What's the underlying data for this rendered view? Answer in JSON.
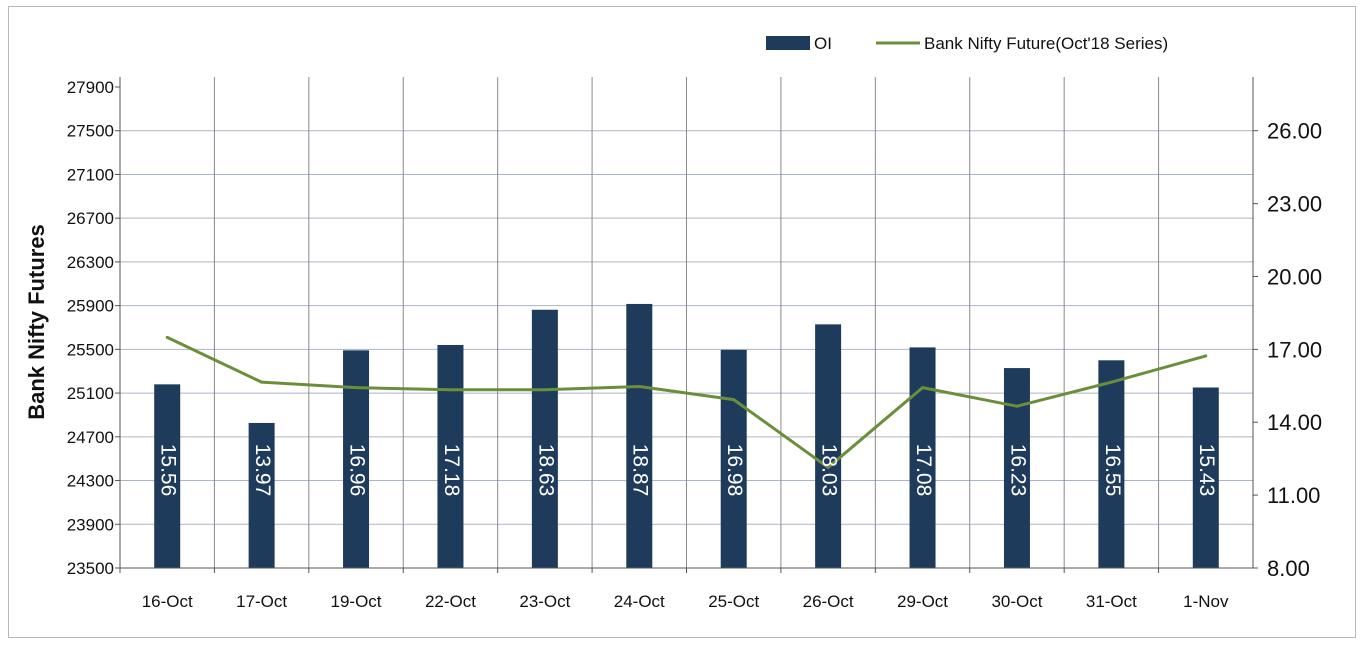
{
  "chart_data": {
    "type": "bar",
    "categories": [
      "16-Oct",
      "17-Oct",
      "19-Oct",
      "22-Oct",
      "23-Oct",
      "24-Oct",
      "25-Oct",
      "26-Oct",
      "29-Oct",
      "30-Oct",
      "31-Oct",
      "1-Nov"
    ],
    "series": [
      {
        "name": "OI",
        "type": "bar",
        "axis": "right",
        "values": [
          15.56,
          13.97,
          16.96,
          17.18,
          18.63,
          18.87,
          16.98,
          18.03,
          17.08,
          16.23,
          16.55,
          15.43
        ],
        "data_labels": [
          "15.56",
          "13.97",
          "16.96",
          "17.18",
          "18.63",
          "18.87",
          "16.98",
          "18.03",
          "17.08",
          "16.23",
          "16.55",
          "15.43"
        ],
        "color": "#1f3b5c"
      },
      {
        "name": "Bank Nifty Future(Oct'18 Series)",
        "type": "line",
        "axis": "left",
        "values": [
          25610,
          25200,
          25150,
          25130,
          25130,
          25160,
          25040,
          24420,
          25150,
          24980,
          25200,
          25440
        ],
        "color": "#6b8e3a"
      }
    ],
    "ylabel": "Bank Nifty Futures",
    "xlabel": "",
    "ylim": [
      23500,
      27900
    ],
    "y_ticks": [
      "27900",
      "27500",
      "27100",
      "26700",
      "26300",
      "25900",
      "25500",
      "25100",
      "24700",
      "24300",
      "23900",
      "23500"
    ],
    "y2lim": [
      8.0,
      27.8
    ],
    "y2_ticks": [
      "26.00",
      "23.00",
      "20.00",
      "17.00",
      "14.00",
      "11.00",
      "8.00"
    ],
    "grid": true,
    "legend_position": "top-right"
  }
}
